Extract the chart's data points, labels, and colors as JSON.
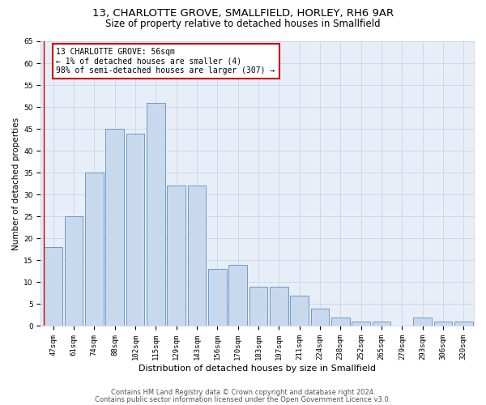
{
  "title": "13, CHARLOTTE GROVE, SMALLFIELD, HORLEY, RH6 9AR",
  "subtitle": "Size of property relative to detached houses in Smallfield",
  "xlabel": "Distribution of detached houses by size in Smallfield",
  "ylabel": "Number of detached properties",
  "categories": [
    "47sqm",
    "61sqm",
    "74sqm",
    "88sqm",
    "102sqm",
    "115sqm",
    "129sqm",
    "143sqm",
    "156sqm",
    "170sqm",
    "183sqm",
    "197sqm",
    "211sqm",
    "224sqm",
    "238sqm",
    "252sqm",
    "265sqm",
    "279sqm",
    "293sqm",
    "306sqm",
    "320sqm"
  ],
  "values": [
    18,
    25,
    35,
    45,
    44,
    51,
    32,
    32,
    13,
    14,
    9,
    9,
    7,
    4,
    2,
    1,
    1,
    0,
    2,
    1,
    1
  ],
  "bar_color": "#c9d9ed",
  "bar_edge_color": "#5a8fc3",
  "highlight_line_color": "#cc0000",
  "annotation_text": "13 CHARLOTTE GROVE: 56sqm\n← 1% of detached houses are smaller (4)\n98% of semi-detached houses are larger (307) →",
  "annotation_box_color": "#ffffff",
  "annotation_box_edge": "#cc0000",
  "ylim": [
    0,
    65
  ],
  "yticks": [
    0,
    5,
    10,
    15,
    20,
    25,
    30,
    35,
    40,
    45,
    50,
    55,
    60,
    65
  ],
  "grid_color": "#c8d4e8",
  "bg_color": "#e8eef7",
  "footer_line1": "Contains HM Land Registry data © Crown copyright and database right 2024.",
  "footer_line2": "Contains public sector information licensed under the Open Government Licence v3.0.",
  "title_fontsize": 9.5,
  "subtitle_fontsize": 8.5,
  "xlabel_fontsize": 8,
  "ylabel_fontsize": 7.5,
  "tick_fontsize": 6.5,
  "annotation_fontsize": 7,
  "footer_fontsize": 6
}
